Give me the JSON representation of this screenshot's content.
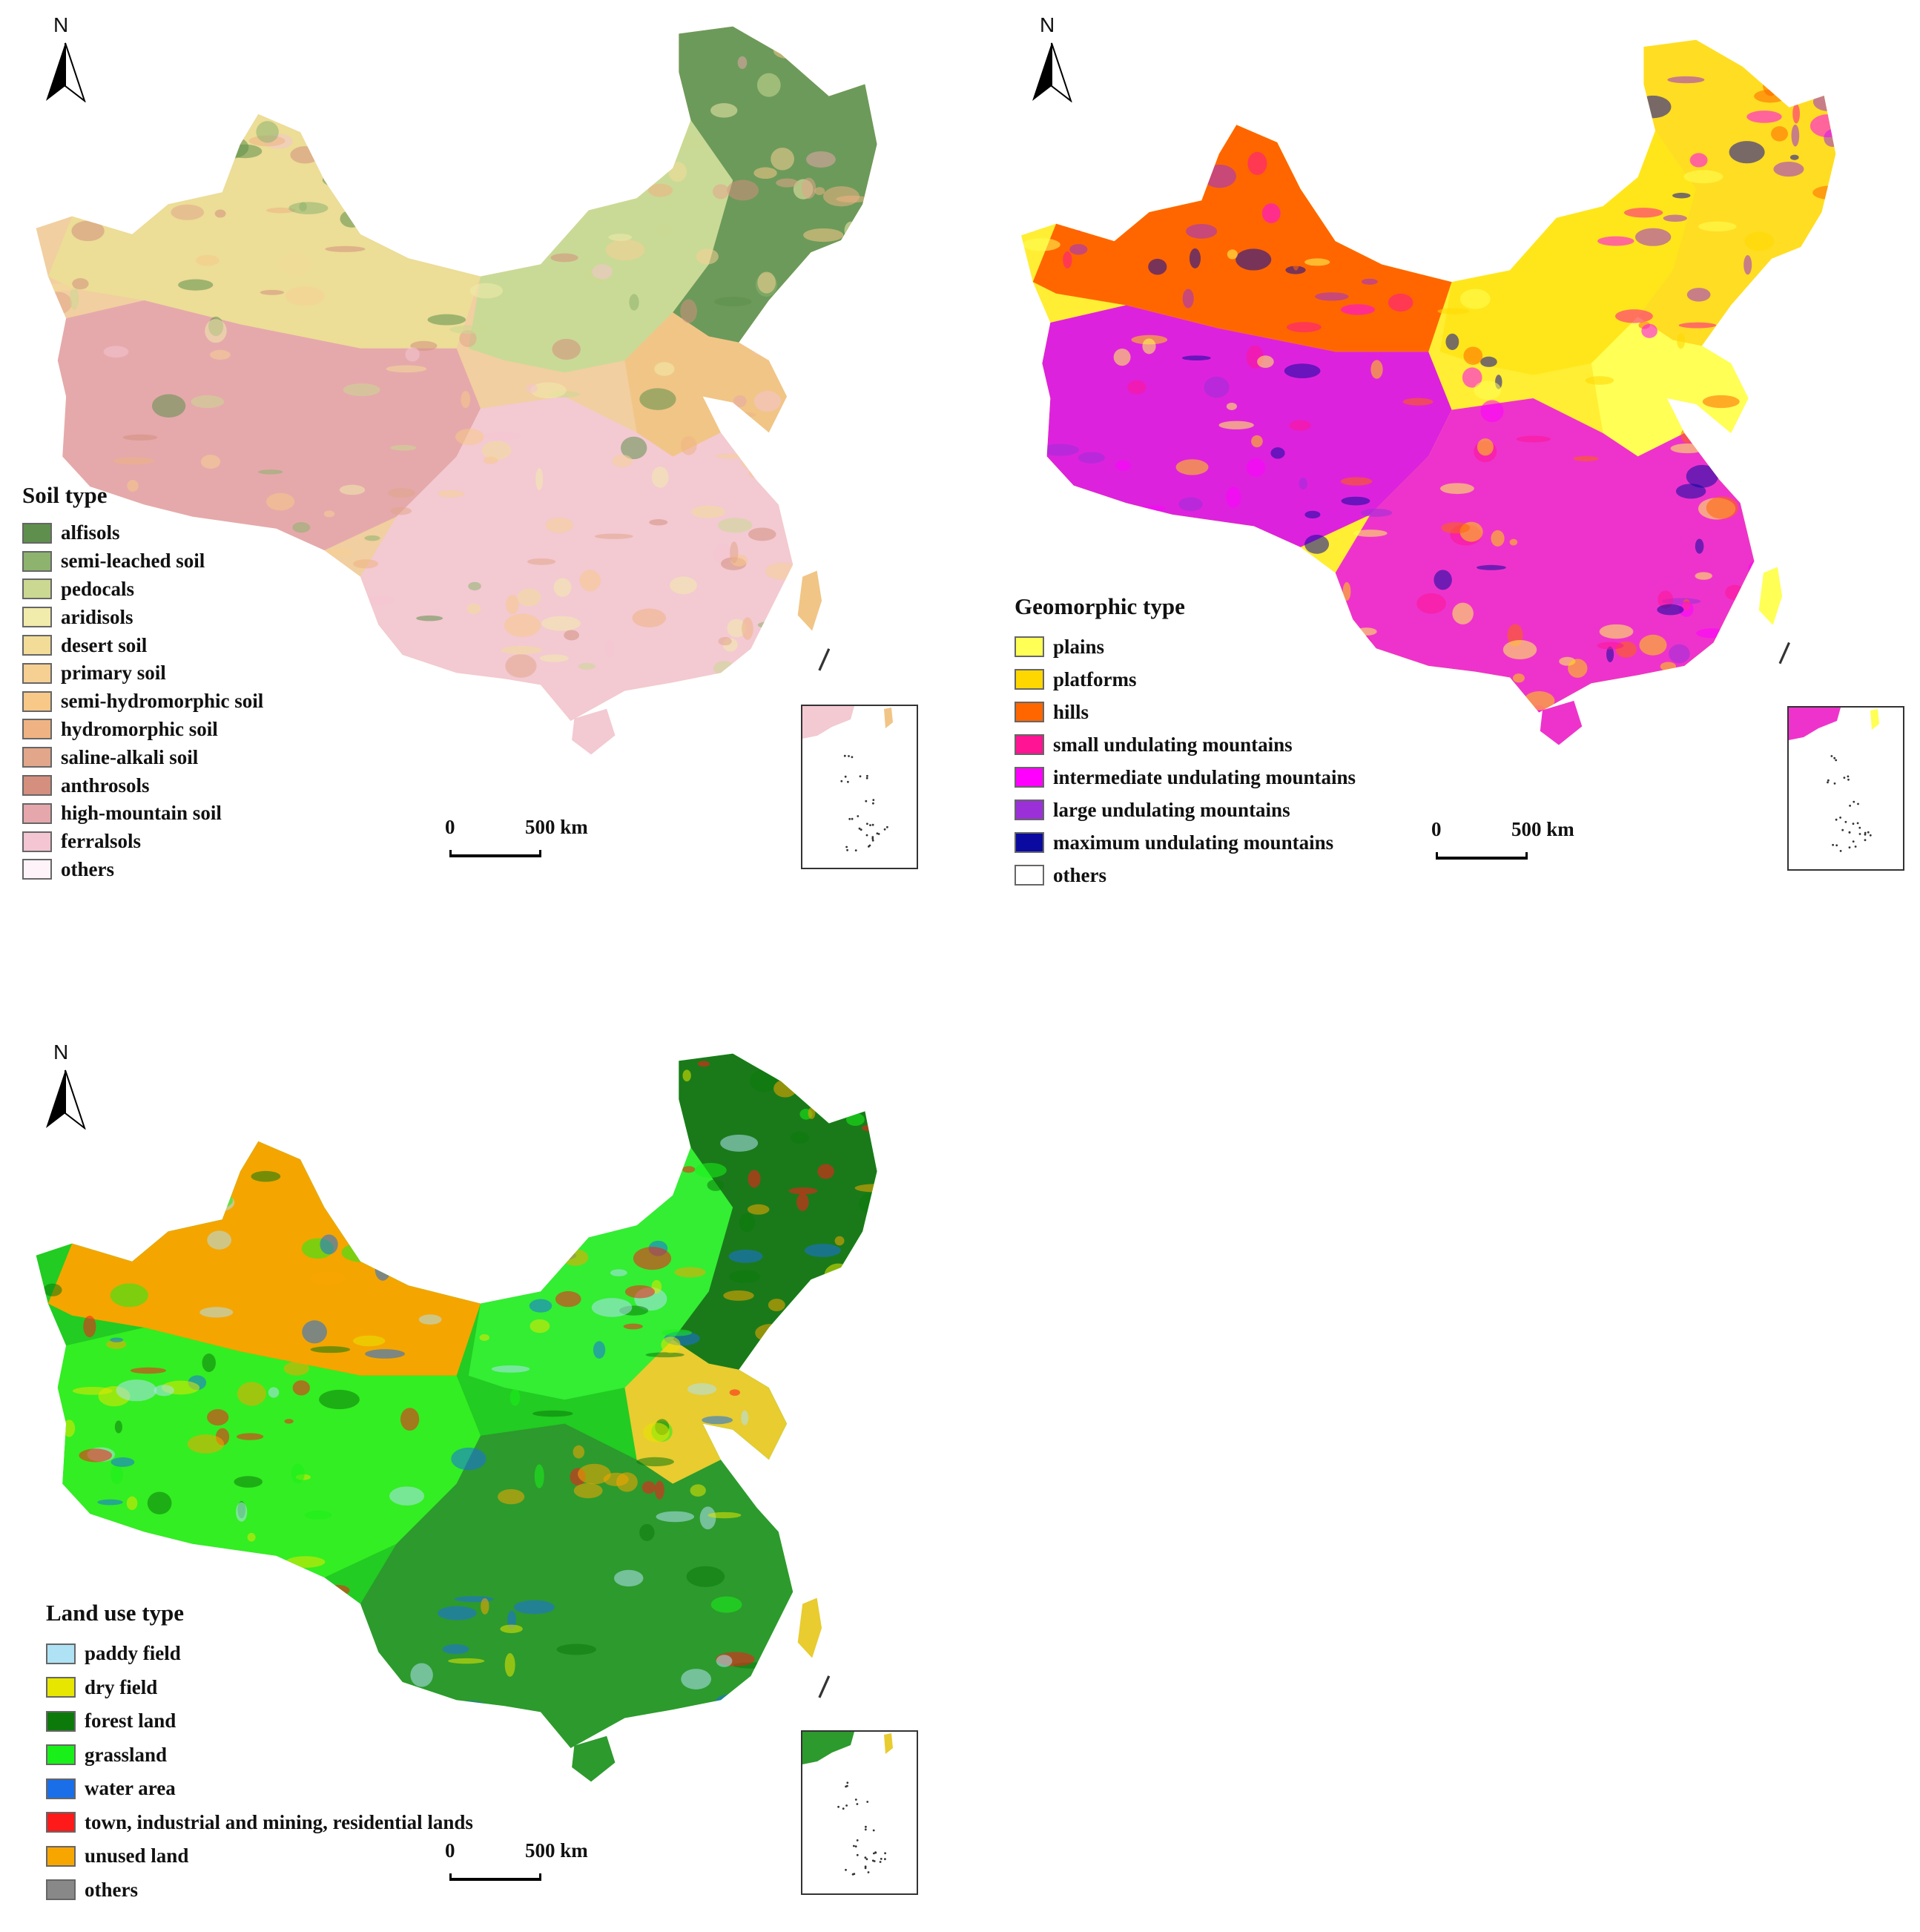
{
  "north_label": "N",
  "scale": {
    "zero": "0",
    "distance": "500 km"
  },
  "maps": [
    {
      "legend_title": "Soil type",
      "map_colors": {
        "base": "#f1cfa0",
        "west": "#e5a9ab",
        "south": "#f3c9d2",
        "northeast": "#6c9a5a",
        "north": "#c9da96",
        "northwest": "#ecdd97",
        "east": "#f1c586"
      },
      "legend": [
        {
          "label": "alfisols",
          "color": "#5e8f4c"
        },
        {
          "label": "semi-leached soil",
          "color": "#8db36e"
        },
        {
          "label": "pedocals",
          "color": "#cbd891"
        },
        {
          "label": "aridisols",
          "color": "#f1ebac"
        },
        {
          "label": "desert soil",
          "color": "#f2dc98"
        },
        {
          "label": "primary soil",
          "color": "#f6cf93"
        },
        {
          "label": "semi-hydromorphic soil",
          "color": "#f8c889"
        },
        {
          "label": "hydromorphic soil",
          "color": "#efb383"
        },
        {
          "label": "saline-alkali soil",
          "color": "#e2a68a"
        },
        {
          "label": "anthrosols",
          "color": "#d48f7e"
        },
        {
          "label": "high-mountain soil",
          "color": "#e5a7ab"
        },
        {
          "label": "ferralsols",
          "color": "#f4c5d2"
        },
        {
          "label": "others",
          "color": "#fdf3f8"
        }
      ]
    },
    {
      "legend_title": "Geomorphic type",
      "map_colors": {
        "base": "#ffee33",
        "west": "#dd22dd",
        "south": "#ee33cc",
        "northeast": "#ffdd22",
        "north": "#ffe61a",
        "northwest": "#ff6600",
        "east": "#ffff55"
      },
      "legend": [
        {
          "label": "plains",
          "color": "#ffff55"
        },
        {
          "label": "platforms",
          "color": "#ffd700"
        },
        {
          "label": "hills",
          "color": "#ff6600"
        },
        {
          "label": "small undulating mountains",
          "color": "#ff1493"
        },
        {
          "label": "intermediate undulating mountains",
          "color": "#ff00ff"
        },
        {
          "label": "large undulating mountains",
          "color": "#9b30d9"
        },
        {
          "label": "maximum undulating mountains",
          "color": "#0a0aa0"
        },
        {
          "label": "others",
          "color": "#ffffff"
        }
      ]
    },
    {
      "legend_title": "Land use type",
      "map_colors": {
        "base": "#22cc22",
        "west": "#33ee22",
        "south": "#2d9a2d",
        "northeast": "#1a7a1a",
        "north": "#33ee33",
        "northwest": "#f5a500",
        "east": "#e8cc30"
      },
      "legend": [
        {
          "label": "paddy field",
          "color": "#aee2f4"
        },
        {
          "label": "dry field",
          "color": "#e6e600"
        },
        {
          "label": "forest land",
          "color": "#0b7a0b"
        },
        {
          "label": "grassland",
          "color": "#19f019"
        },
        {
          "label": "water area",
          "color": "#1a6fe8"
        },
        {
          "label": "town, industrial and mining, residential lands",
          "color": "#ff1a1a"
        },
        {
          "label": "unused land",
          "color": "#f7a600"
        },
        {
          "label": "others",
          "color": "#888888"
        }
      ]
    }
  ]
}
